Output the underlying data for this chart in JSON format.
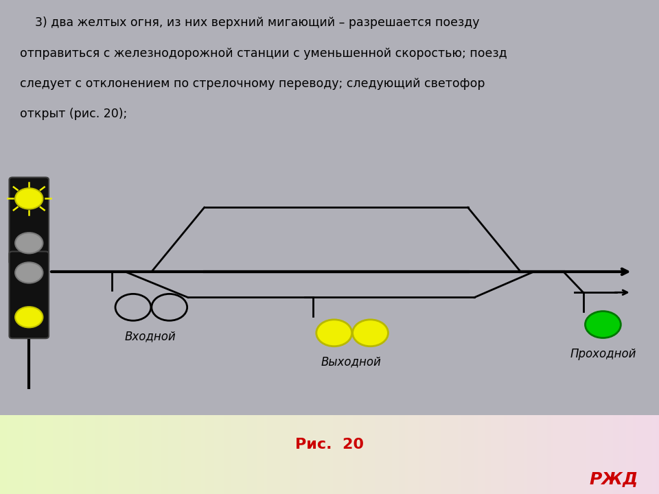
{
  "title_text": "Рис.  20",
  "description_lines": [
    "    3) два желтых огня, из них верхний мигающий – разрешается поезду",
    "отправиться с железнодорожной станции с уменьшенной скоростью; поезд",
    "следует с отклонением по стрелочному переводу; следующий светофор",
    "открыт (рис. 20);"
  ],
  "bg_top": "#c8eef0",
  "bg_middle": "#ffffff",
  "traffic_light_body_color": "#111111",
  "yellow_color": "#f0f000",
  "gray_color": "#999999",
  "green_color": "#00cc00",
  "text_color_desc": "#000000",
  "text_color_title": "#cc0000",
  "vhodnoj_label": "Входной",
  "vyhodnoj_label": "Выходной",
  "prohodnoj_label": "Проходной"
}
